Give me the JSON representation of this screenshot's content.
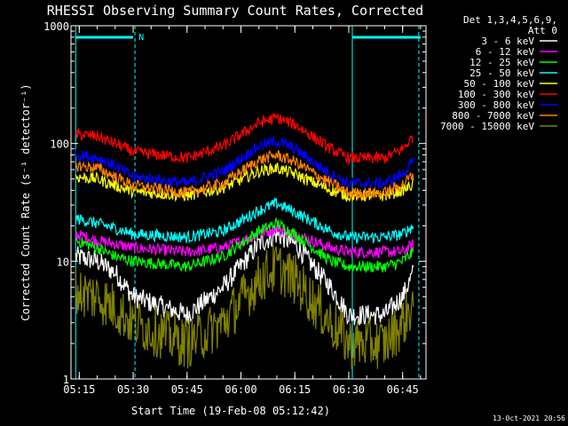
{
  "chart_data": {
    "type": "line",
    "title": "RHESSI Observing Summary Count Rates, Corrected",
    "xlabel": "Start Time (19-Feb-08 05:12:42)",
    "ylabel": "Corrected Count Rate (s⁻¹ detector⁻¹)",
    "yscale": "log",
    "ylim": [
      1,
      1000
    ],
    "xlim": [
      "05:12:42",
      "06:51:30"
    ],
    "xticks": [
      "05:15",
      "05:30",
      "05:45",
      "06:00",
      "06:15",
      "06:30",
      "06:45"
    ],
    "yticks": [
      "1",
      "10",
      "100",
      "1000"
    ],
    "grid": false,
    "legend_header": [
      "Det 1,3,4,5,6,9,",
      "Att 0"
    ],
    "legend_position": "top-right",
    "night_markers": {
      "color": "#00ffff",
      "solid_lines": [
        "05:14:00",
        "06:31:00"
      ],
      "dashed_lines": [
        "05:30:30",
        "06:49:30"
      ],
      "bar_segments": [
        [
          "05:14:00",
          "05:30:00"
        ],
        [
          "06:31:00",
          "06:50:00"
        ]
      ],
      "label": "N"
    },
    "series": [
      {
        "name": "3 - 6 keV",
        "color": "#ffffff",
        "x": [
          "05:14",
          "05:20",
          "05:25",
          "05:30",
          "05:45",
          "05:55",
          "06:05",
          "06:10",
          "06:15",
          "06:25",
          "06:30",
          "06:40",
          "06:45",
          "06:48"
        ],
        "values": [
          11,
          10,
          8,
          5,
          3.5,
          6,
          14,
          17,
          14,
          6,
          3.5,
          3.5,
          5,
          8
        ]
      },
      {
        "name": "6 - 12 keV",
        "color": "#ff00ff",
        "x": [
          "05:14",
          "05:20",
          "05:25",
          "05:30",
          "05:45",
          "05:55",
          "06:05",
          "06:10",
          "06:15",
          "06:25",
          "06:30",
          "06:40",
          "06:45",
          "06:48"
        ],
        "values": [
          17,
          15,
          14,
          13,
          12,
          13,
          17,
          19,
          17,
          13,
          12,
          12,
          12,
          14
        ]
      },
      {
        "name": "12 - 25 keV",
        "color": "#00ff00",
        "x": [
          "05:14",
          "05:20",
          "05:25",
          "05:30",
          "05:45",
          "05:55",
          "06:05",
          "06:10",
          "06:15",
          "06:25",
          "06:30",
          "06:40",
          "06:45",
          "06:48"
        ],
        "values": [
          15,
          13,
          11,
          10,
          9,
          11,
          18,
          21,
          17,
          10,
          9,
          9,
          10,
          12
        ]
      },
      {
        "name": "25 - 50 keV",
        "color": "#00ffff",
        "x": [
          "05:14",
          "05:20",
          "05:25",
          "05:30",
          "05:45",
          "05:55",
          "06:05",
          "06:10",
          "06:15",
          "06:25",
          "06:30",
          "06:40",
          "06:45",
          "06:48"
        ],
        "values": [
          23,
          21,
          19,
          17,
          16,
          18,
          27,
          31,
          26,
          18,
          16,
          16,
          17,
          20
        ]
      },
      {
        "name": "50 - 100 keV",
        "color": "#ffff00",
        "x": [
          "05:14",
          "05:20",
          "05:25",
          "05:30",
          "05:45",
          "05:55",
          "06:05",
          "06:10",
          "06:15",
          "06:25",
          "06:30",
          "06:40",
          "06:45",
          "06:48"
        ],
        "values": [
          52,
          50,
          44,
          39,
          36,
          42,
          58,
          62,
          55,
          40,
          36,
          36,
          40,
          45
        ]
      },
      {
        "name": "100 - 300 keV",
        "color": "#ff0000",
        "x": [
          "05:14",
          "05:20",
          "05:25",
          "05:30",
          "05:45",
          "05:55",
          "06:05",
          "06:10",
          "06:15",
          "06:25",
          "06:30",
          "06:40",
          "06:45",
          "06:48"
        ],
        "values": [
          120,
          115,
          100,
          85,
          75,
          95,
          150,
          165,
          145,
          90,
          75,
          75,
          90,
          115
        ]
      },
      {
        "name": "300 - 800 keV",
        "color": "#0000ff",
        "x": [
          "05:14",
          "05:20",
          "05:25",
          "05:30",
          "05:45",
          "05:55",
          "06:05",
          "06:10",
          "06:15",
          "06:25",
          "06:30",
          "06:40",
          "06:45",
          "06:48"
        ],
        "values": [
          80,
          76,
          65,
          52,
          46,
          58,
          95,
          105,
          90,
          55,
          46,
          46,
          55,
          70
        ]
      },
      {
        "name": "800 - 7000 keV",
        "color": "#ff8000",
        "x": [
          "05:14",
          "05:20",
          "05:25",
          "05:30",
          "05:45",
          "05:55",
          "06:05",
          "06:10",
          "06:15",
          "06:25",
          "06:30",
          "06:40",
          "06:45",
          "06:48"
        ],
        "values": [
          65,
          62,
          52,
          44,
          38,
          46,
          72,
          80,
          70,
          46,
          38,
          38,
          45,
          55
        ]
      },
      {
        "name": "7000 - 15000 keV",
        "color": "#808000",
        "x": [
          "05:14",
          "05:20",
          "05:25",
          "05:30",
          "05:45",
          "05:55",
          "06:05",
          "06:10",
          "06:15",
          "06:25",
          "06:30",
          "06:40",
          "06:45",
          "06:48"
        ],
        "values": [
          5.5,
          5,
          4,
          3,
          2,
          3,
          7,
          9,
          7,
          3,
          2,
          2,
          3,
          4.5
        ]
      }
    ],
    "timestamp": "13-Oct-2021 20:56"
  }
}
